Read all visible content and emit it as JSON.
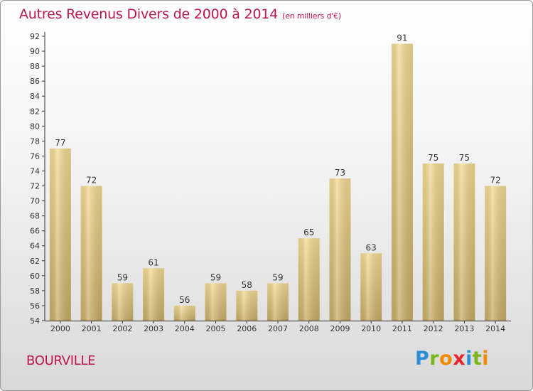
{
  "title": "Autres Revenus Divers de 2000 à 2014",
  "subtitle": "(en milliers d'€)",
  "location": "BOURVILLE",
  "brand": [
    "P",
    "r",
    "o",
    "x",
    "i",
    "t",
    "i"
  ],
  "brand_colors": [
    "#2a8fd4",
    "#7ab51d",
    "#f08a00",
    "#e8242f",
    "#2a8fd4",
    "#7ab51d",
    "#f08a00"
  ],
  "chart_data": {
    "type": "bar",
    "title": "Autres Revenus Divers de 2000 à 2014",
    "xlabel": "",
    "ylabel": "",
    "categories": [
      "2000",
      "2001",
      "2002",
      "2003",
      "2004",
      "2005",
      "2006",
      "2007",
      "2008",
      "2009",
      "2010",
      "2011",
      "2012",
      "2013",
      "2014"
    ],
    "values": [
      77,
      72,
      59,
      61,
      56,
      59,
      58,
      59,
      65,
      73,
      63,
      91,
      75,
      75,
      72
    ],
    "ylim": [
      54,
      92
    ],
    "yticks": [
      54,
      56,
      58,
      60,
      62,
      64,
      66,
      68,
      70,
      72,
      74,
      76,
      78,
      80,
      82,
      84,
      86,
      88,
      90,
      92
    ],
    "grid": false,
    "bar_color": "#e8cf82"
  }
}
